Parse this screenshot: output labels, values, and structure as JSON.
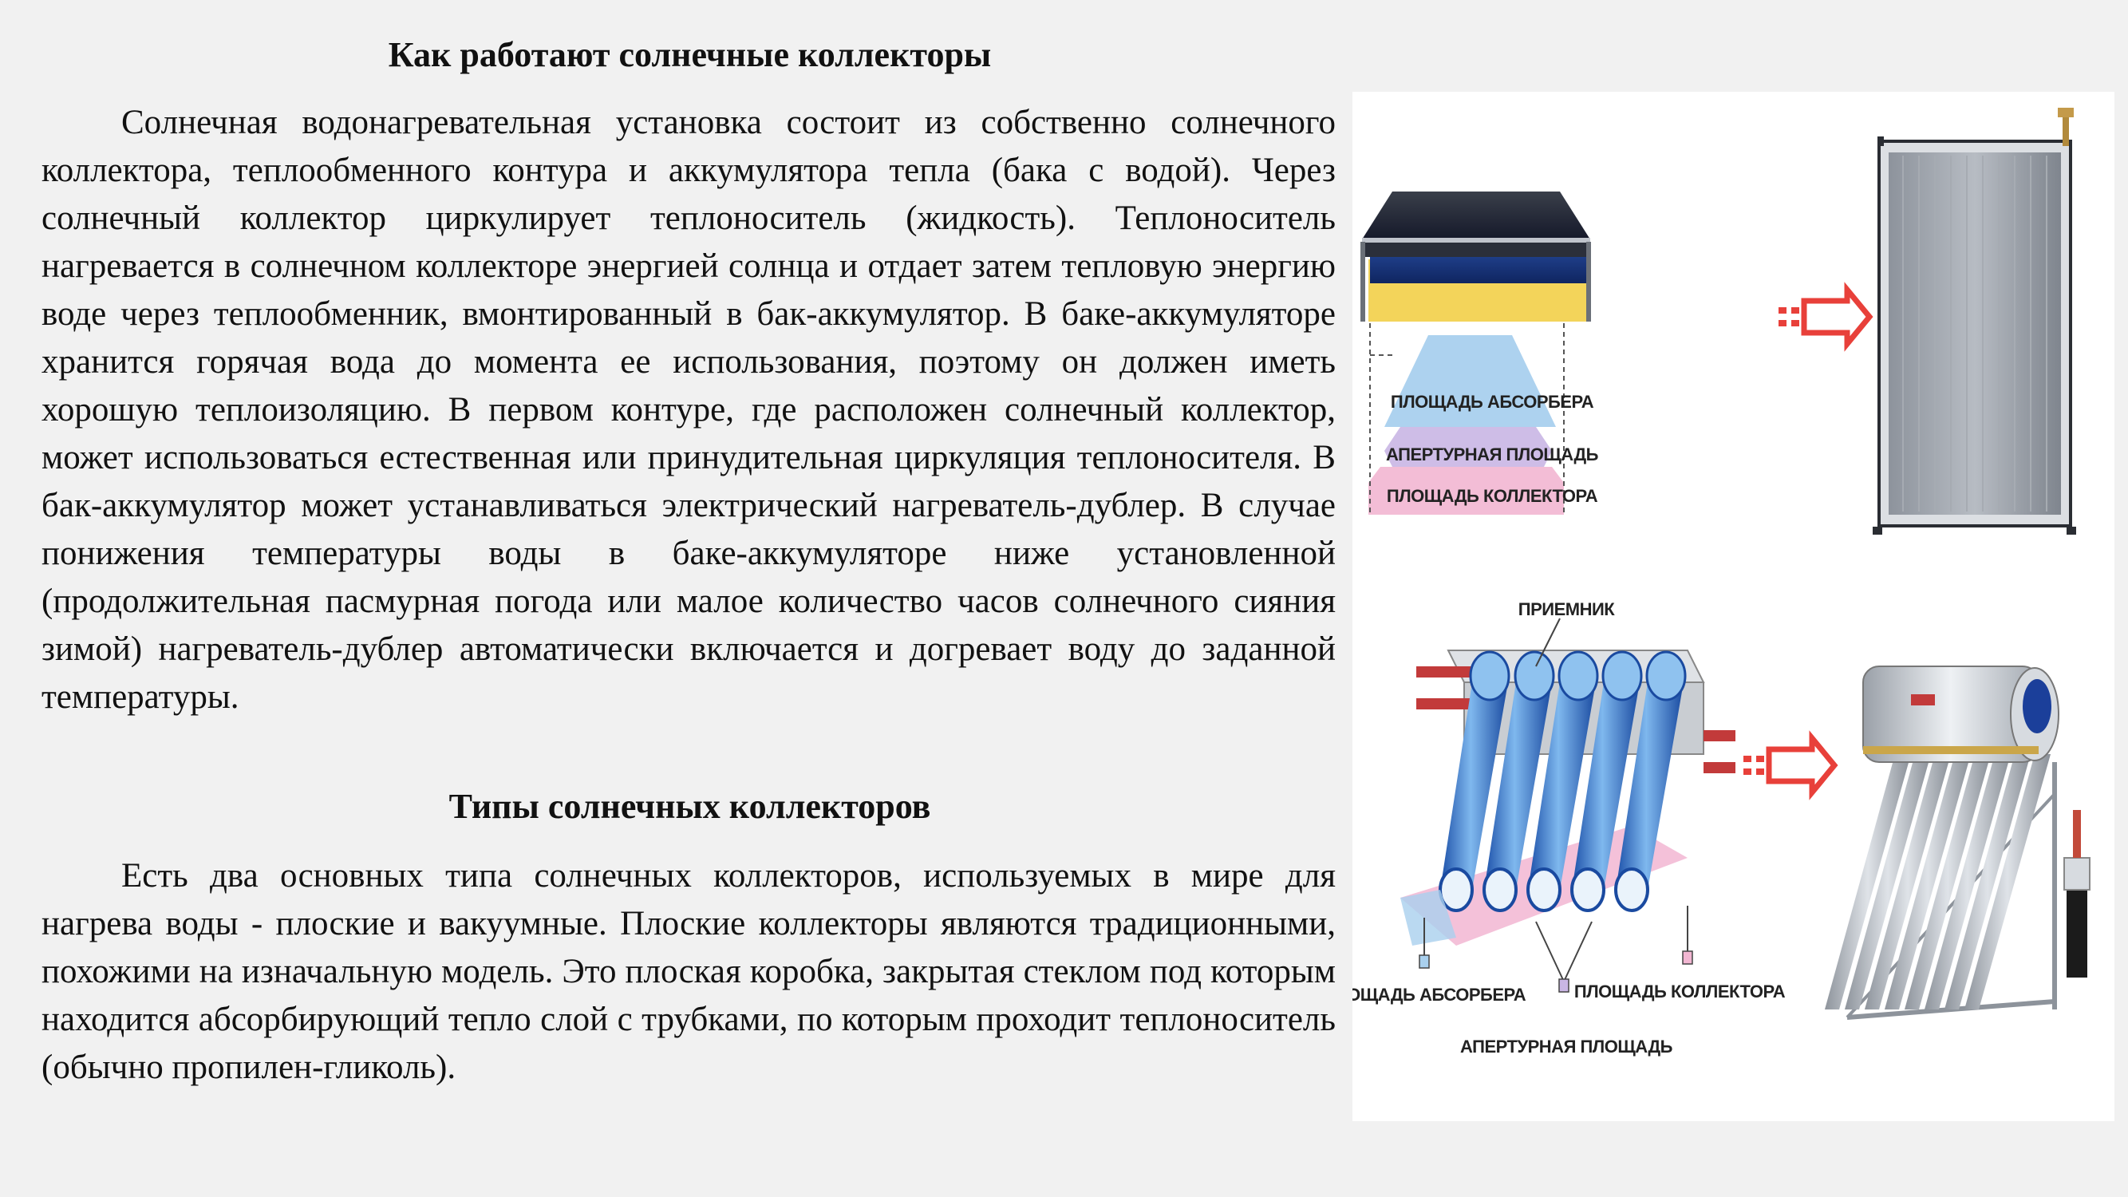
{
  "section1": {
    "title": "Как работают солнечные коллекторы",
    "paragraph": "Солнечная водонагревательная установка состоит из собственно солнечного коллектора, теплообменного контура и аккумулятора тепла (бака с водой). Через солнечный коллектор циркулирует теплоноситель (жидкость). Теплоноситель нагревается в солнечном коллекторе энергией солнца и отдает затем тепловую энергию воде через теплообменник, вмонтированный в бак-аккумулятор. В баке-аккумуляторе хранится горячая вода до момента ее использования, поэтому он должен иметь хорошую теплоизоляцию. В первом контуре, где расположен солнечный коллектор, может использоваться естественная или принудительная циркуляция теплоносителя. В бак-аккумулятор может устанавливаться электрический нагреватель-дублер. В случае понижения температуры воды в баке-аккумуляторе ниже установленной (продолжительная пасмурная погода или малое количество часов солнечного сияния зимой) нагреватель-дублер автоматически включается и догревает воду до заданной температуры."
  },
  "section2": {
    "title": "Типы солнечных коллекторов",
    "paragraph": "Есть два основных типа солнечных коллекторов, используемых в мире для нагрева воды - плоские и вакуумные. Плоские коллекторы являются традиционными, похожими на изначальную модель. Это плоская коробка, закрытая стеклом под которым находится абсорбирующий тепло слой с трубками, по которым проходит теплоноситель (обычно пропилен-гликоль)."
  },
  "figure": {
    "flat": {
      "absorber_area": "ПЛОЩАДЬ АБСОРБЕРА",
      "aperture_area": "АПЕРТУРНАЯ ПЛОЩАДЬ",
      "collector_area": "ПЛОЩАДЬ КОЛЛЕКТОРА"
    },
    "vacuum": {
      "receiver": "ПРИЕМНИК",
      "absorber_area": "ПЛОЩАДЬ АБСОРБЕРА",
      "collector_area": "ПЛОЩАДЬ КОЛЛЕКТОРА",
      "aperture_area": "АПЕРТУРНАЯ ПЛОЩАДЬ"
    }
  },
  "colors": {
    "background": "#f1f1f1",
    "text": "#111111",
    "arrow": "#e8403a",
    "absorber": "#a9d0ee",
    "aperture": "#c9b6e4",
    "collector": "#f2b6d2",
    "insulation": "#f3d45a"
  }
}
